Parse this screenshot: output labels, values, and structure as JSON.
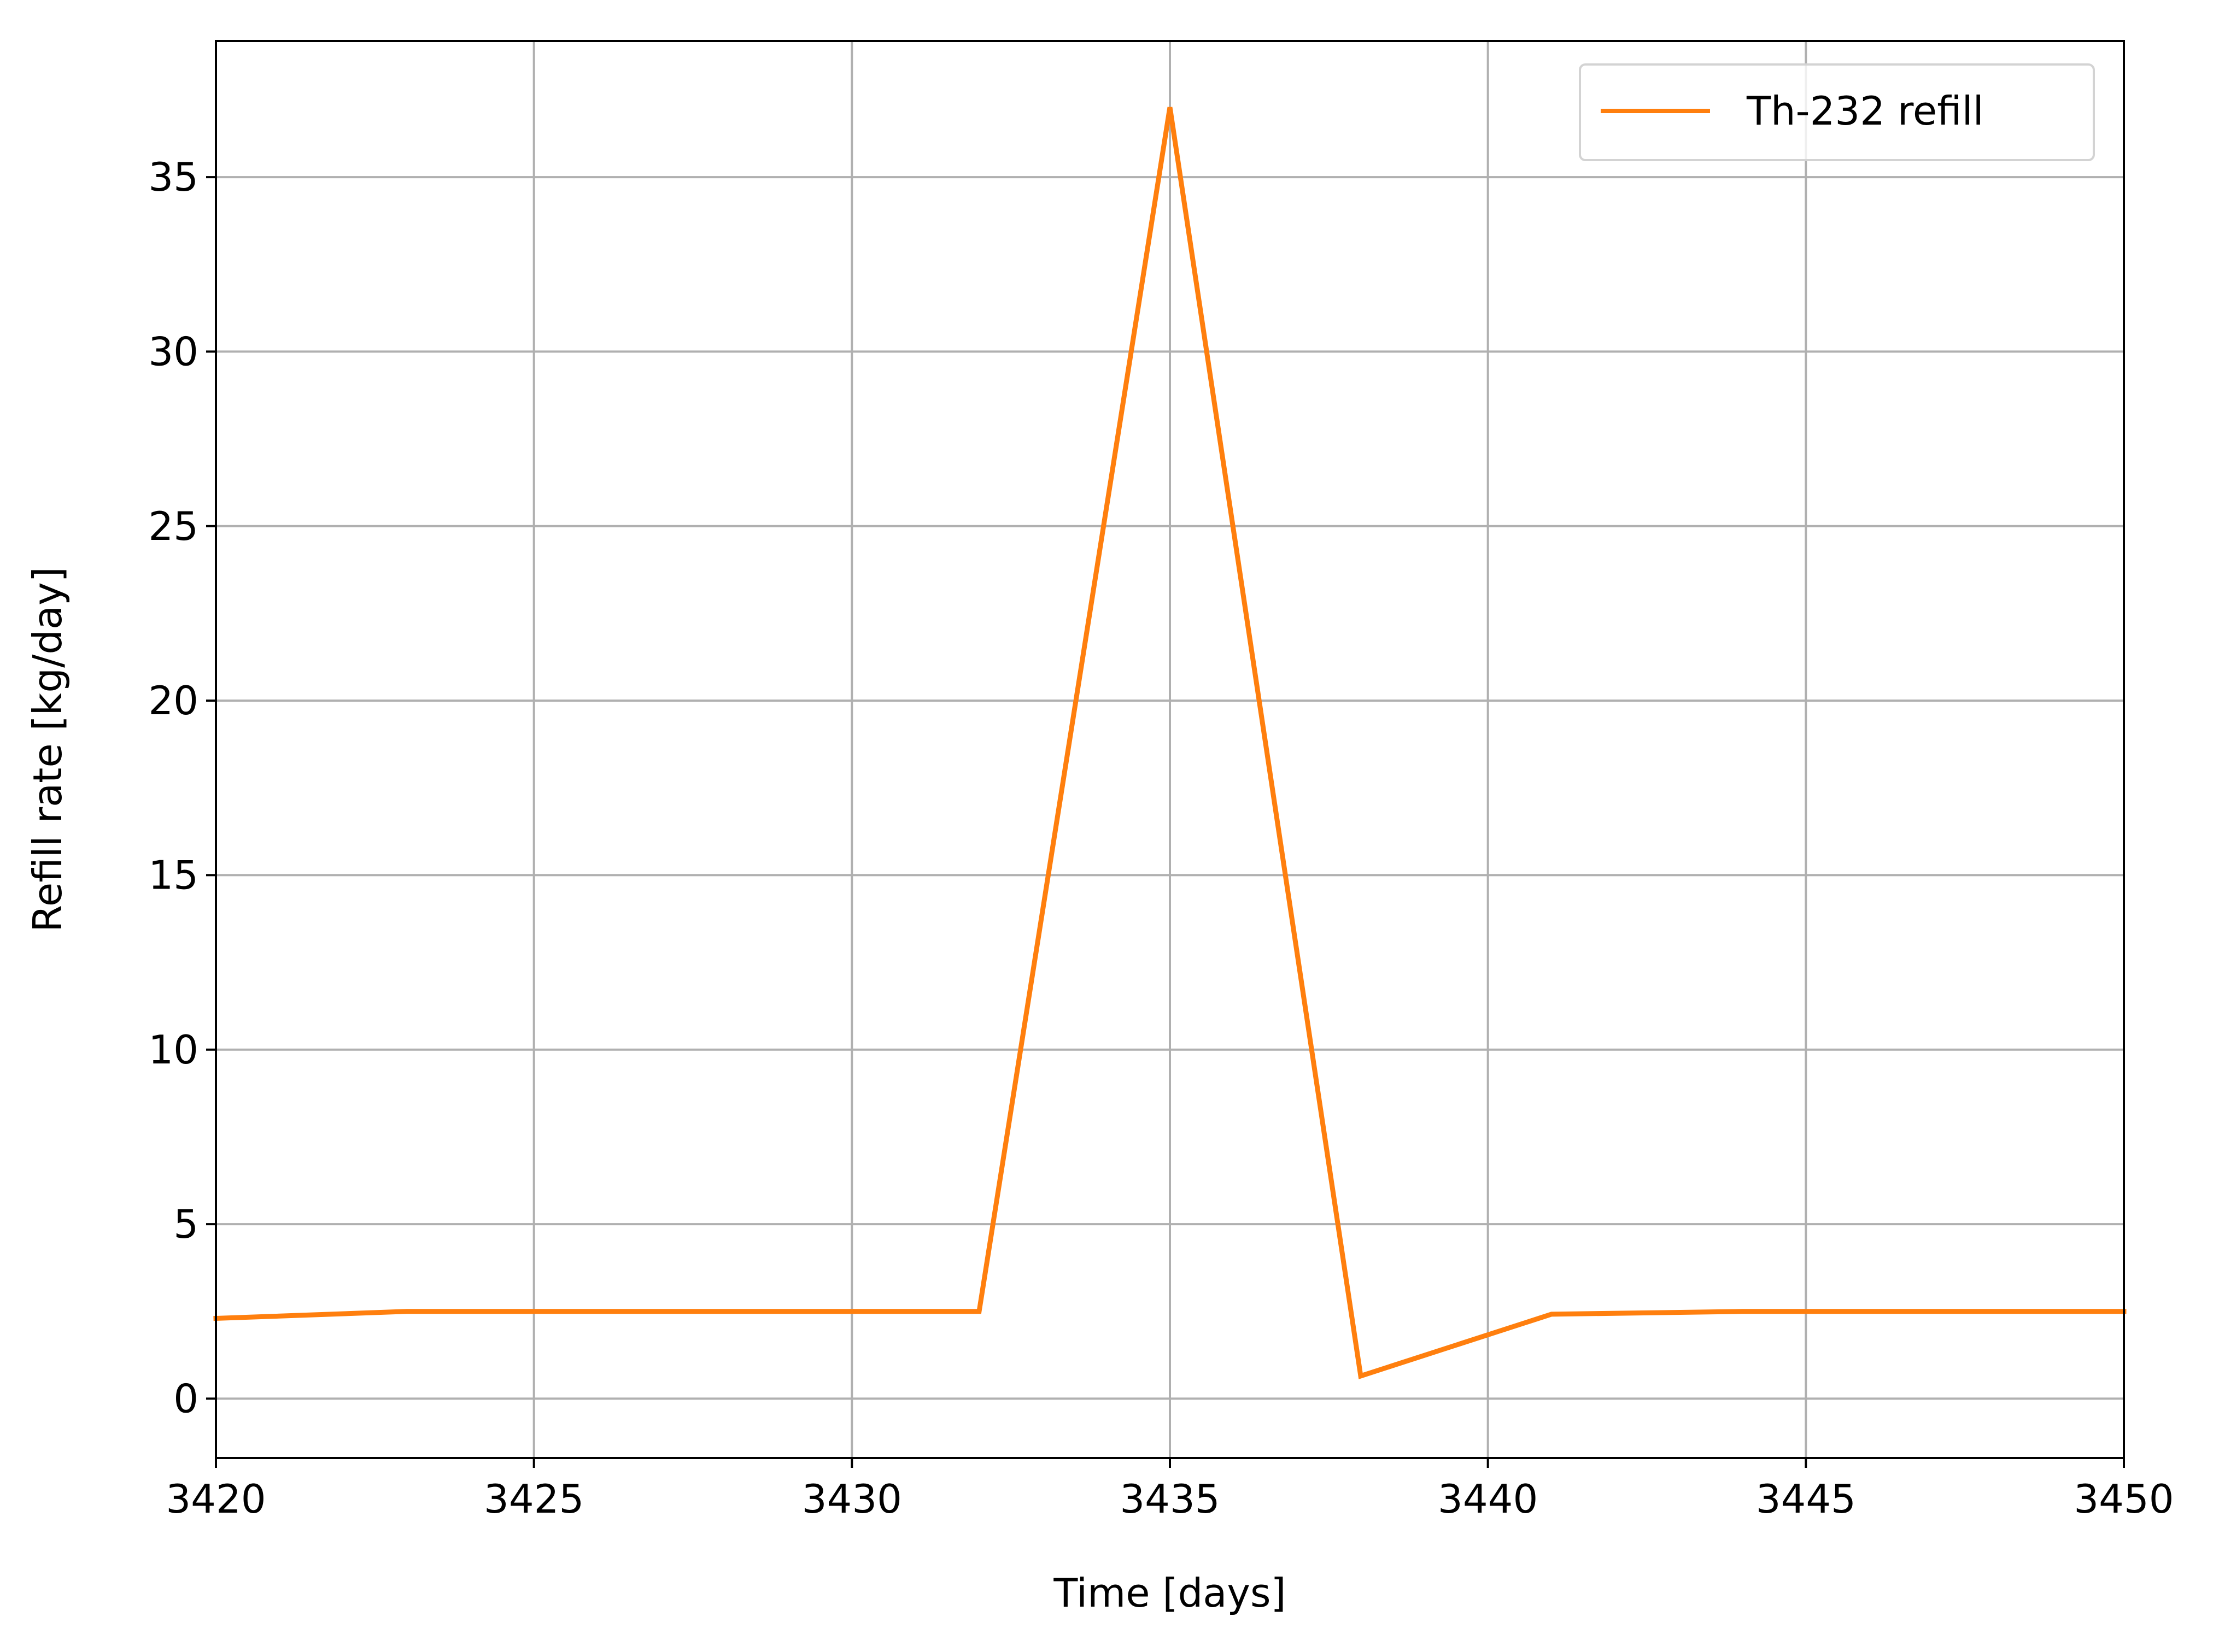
{
  "chart_data": {
    "type": "line",
    "xlabel": "Time [days]",
    "ylabel": "Refill rate [kg/day]",
    "xlim": [
      3420,
      3450
    ],
    "ylim": [
      -1.7,
      38.9
    ],
    "xticks": [
      3420,
      3425,
      3430,
      3435,
      3440,
      3445,
      3450
    ],
    "yticks": [
      0,
      5,
      10,
      15,
      20,
      25,
      30,
      35
    ],
    "grid": true,
    "legend_position": "top-right",
    "colors": {
      "series": "#ff7f0e",
      "grid": "#b0b0b0",
      "axes": "#000000"
    },
    "series": [
      {
        "name": "Th-232 refill",
        "x": [
          3420,
          3423,
          3426,
          3429,
          3432,
          3435,
          3438,
          3441,
          3444,
          3447,
          3450
        ],
        "y": [
          2.3,
          2.5,
          2.5,
          2.5,
          2.5,
          37.0,
          0.65,
          2.42,
          2.5,
          2.5,
          2.5
        ]
      }
    ]
  }
}
